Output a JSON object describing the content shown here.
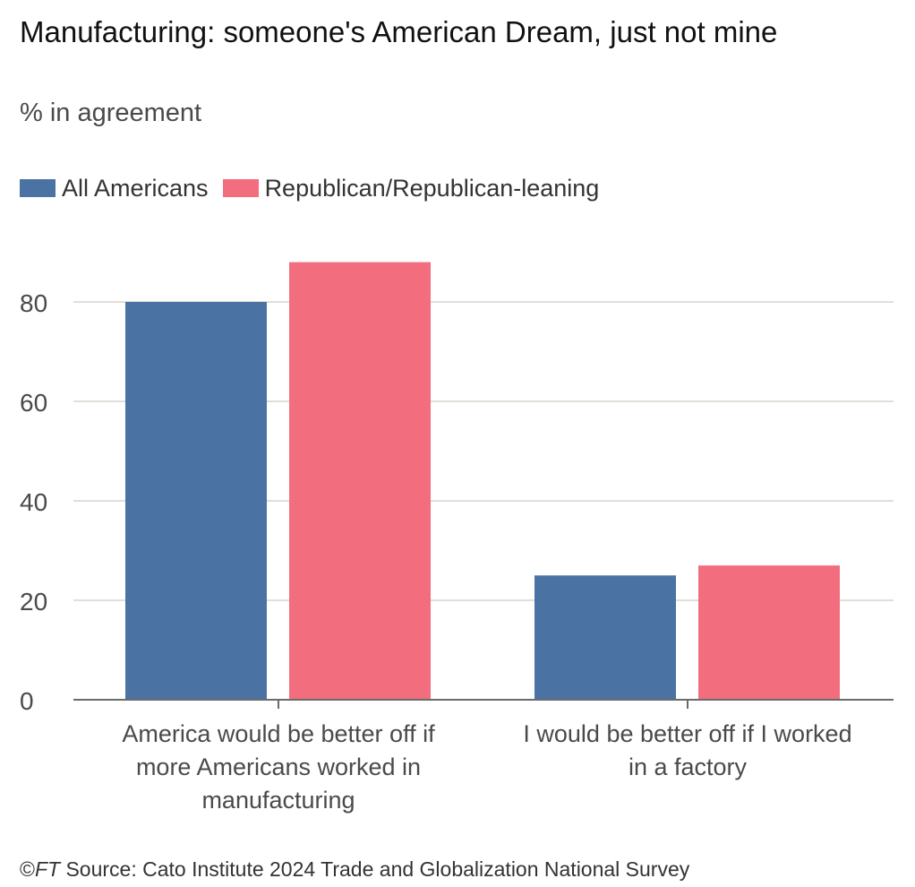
{
  "title": "Manufacturing: someone's American Dream, just not mine",
  "subtitle": "% in agreement",
  "source": {
    "prefix": "©",
    "brand": "FT",
    "text": " Source: Cato Institute 2024 Trade and Globalization National Survey"
  },
  "colors": {
    "all_americans": "#4A73A3",
    "republican": "#F26D7D",
    "grid": "#d9d4cc",
    "axis": "#6b6b6b"
  },
  "chart_data": {
    "type": "bar",
    "title": "Manufacturing: someone's American Dream, just not mine",
    "subtitle": "% in agreement",
    "categories": [
      [
        "America would be better off if",
        "more Americans worked in",
        "manufacturing"
      ],
      [
        "I would be better off if I worked",
        "in a factory"
      ]
    ],
    "series": [
      {
        "name": "All Americans",
        "values": [
          80,
          25
        ]
      },
      {
        "name": "Republican/Republican-leaning",
        "values": [
          88,
          27
        ]
      }
    ],
    "yticks": [
      0,
      20,
      40,
      60,
      80
    ],
    "ylim": [
      0,
      92
    ],
    "grid": true,
    "legend": "top-left"
  }
}
